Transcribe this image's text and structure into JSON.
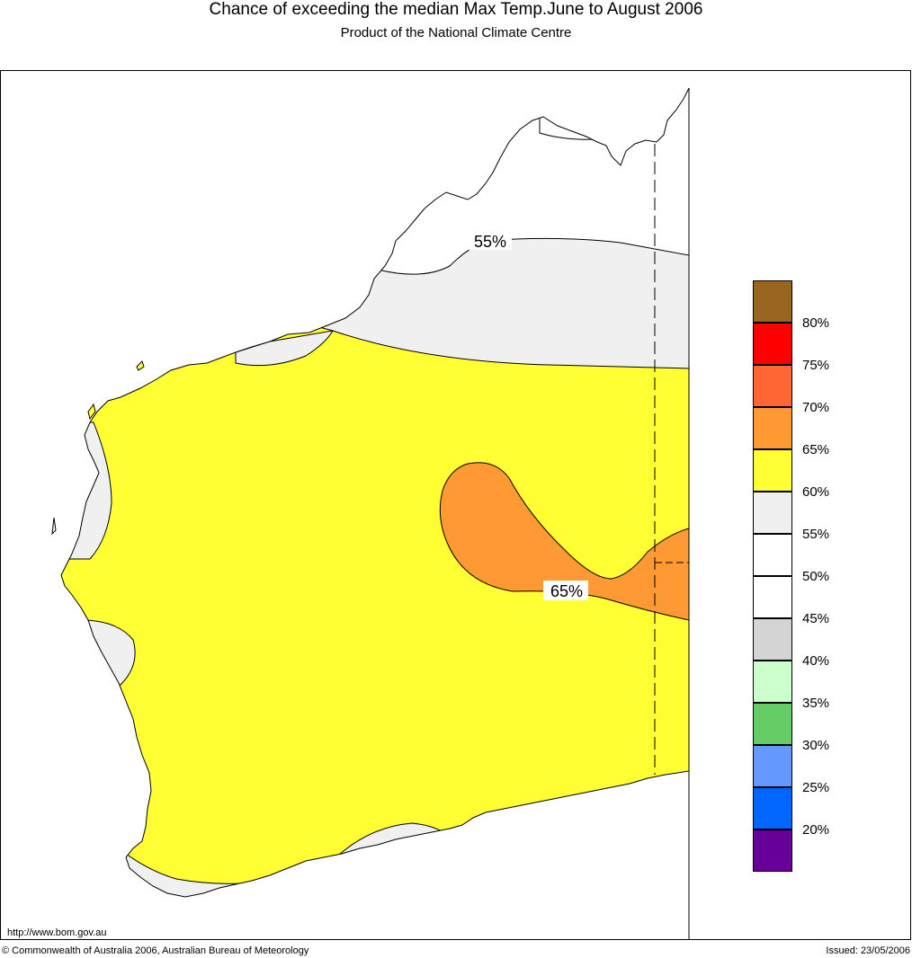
{
  "header": {
    "title": "Chance of exceeding the median Max Temp.June to August 2006",
    "subtitle": "Product of the National Climate Centre"
  },
  "map": {
    "contour_labels": [
      "55%",
      "65%"
    ],
    "colors": {
      "band_55_60": "#f0f0f0",
      "band_60_65": "#ffff33",
      "band_65_70": "#ff9933",
      "coast": "#000000"
    }
  },
  "legend": {
    "items": [
      {
        "label": "80%",
        "color": "#996622"
      },
      {
        "label": "75%",
        "color": "#ff0000"
      },
      {
        "label": "70%",
        "color": "#ff6633"
      },
      {
        "label": "65%",
        "color": "#ff9933"
      },
      {
        "label": "60%",
        "color": "#ffff33"
      },
      {
        "label": "55%",
        "color": "#f0f0f0"
      },
      {
        "label": "50%",
        "color": "#ffffff"
      },
      {
        "label": "45%",
        "color": "#ffffff"
      },
      {
        "label": "40%",
        "color": "#d4d4d4"
      },
      {
        "label": "35%",
        "color": "#ccffcc"
      },
      {
        "label": "30%",
        "color": "#66cc66"
      },
      {
        "label": "25%",
        "color": "#6699ff"
      },
      {
        "label": "20%",
        "color": "#0066ff"
      },
      {
        "label": "",
        "color": "#660099"
      }
    ]
  },
  "footer": {
    "url": "http://www.bom.gov.au",
    "copyright": "© Commonwealth of Australia 2006, Australian Bureau of Meteorology",
    "issued": "Issued: 23/05/2006"
  }
}
